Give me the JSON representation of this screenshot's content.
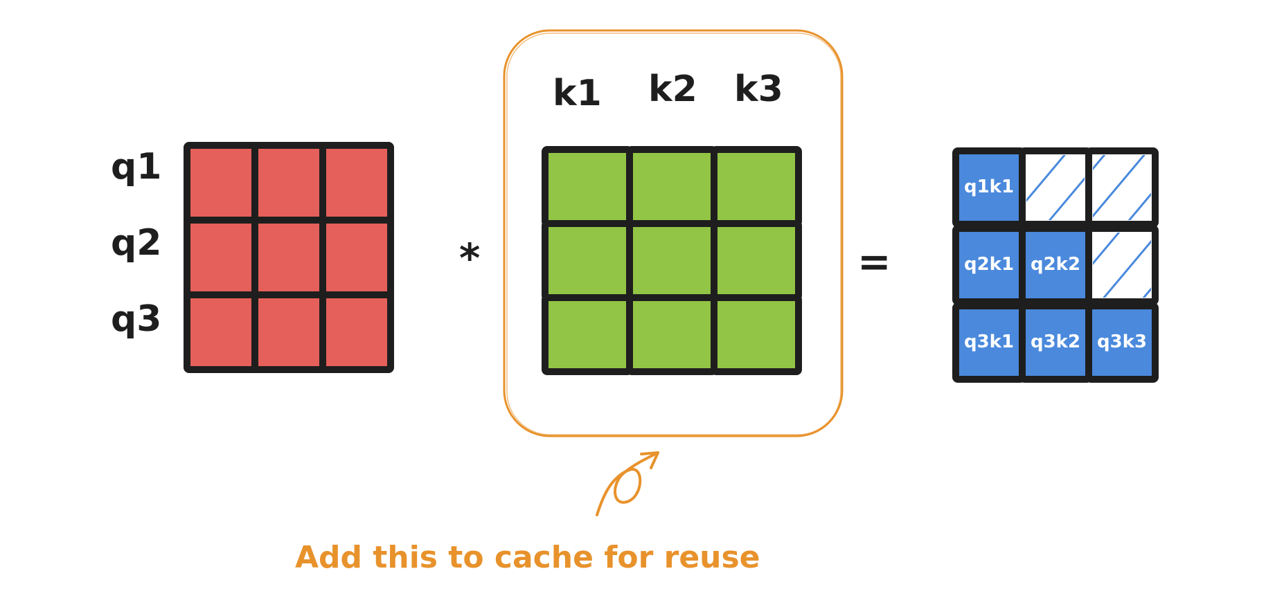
{
  "colors": {
    "query": "#e5605a",
    "key": "#92c545",
    "result": "#4a89dc",
    "outline": "#1e1e1e",
    "annotation": "#e8922c",
    "hatch": "#4a89dc"
  },
  "query_labels": [
    "q1",
    "q2",
    "q3"
  ],
  "key_labels": [
    "k1",
    "k2",
    "k3"
  ],
  "operators": {
    "multiply": "*",
    "equals": "="
  },
  "result_cells": [
    [
      "q1k1",
      null,
      null
    ],
    [
      "q2k1",
      "q2k2",
      null
    ],
    [
      "q3k1",
      "q3k2",
      "q3k3"
    ]
  ],
  "annotation": {
    "text": "Add this to cache for reuse",
    "icon": "curved-arrow-icon"
  }
}
